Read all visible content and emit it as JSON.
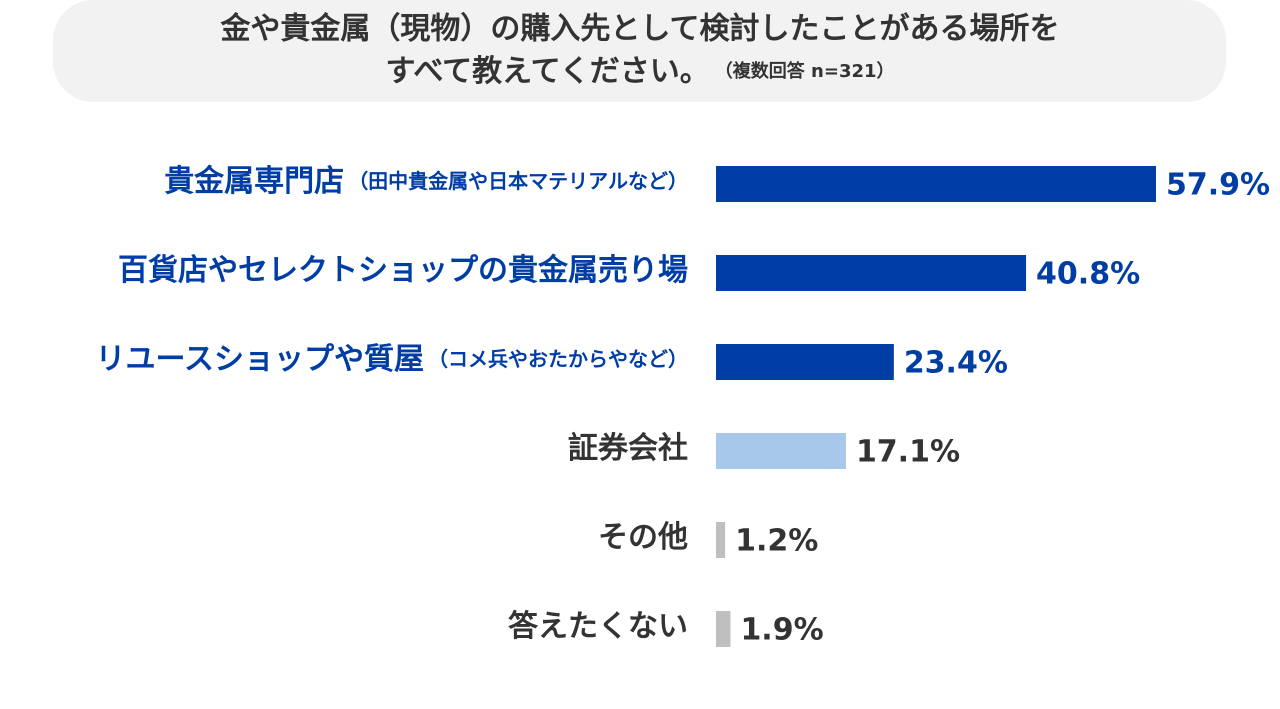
{
  "chart_data": {
    "type": "bar",
    "orientation": "horizontal",
    "title": "金や貴金属（現物）の購入先として検討したことがある場所を",
    "title_line2": "すべて教えてください。",
    "subtitle": "（複数回答 n=321）",
    "categories": [
      "貴金属専門店",
      "百貨店やセレクトショップの貴金属売り場",
      "リユースショップや質屋",
      "証券会社",
      "その他",
      "答えたくない"
    ],
    "category_notes": [
      "（田中貴金属や日本マテリアルなど）",
      null,
      "（コメ兵やおたからやなど）",
      null,
      null,
      null
    ],
    "values": [
      57.9,
      40.8,
      23.4,
      17.1,
      1.2,
      1.9
    ],
    "value_labels": [
      "57.9%",
      "40.8%",
      "23.4%",
      "17.1%",
      "1.2%",
      "1.9%"
    ],
    "colors": [
      "#003da5",
      "#003da5",
      "#003da5",
      "#a7c8ea",
      "#bfbfbf",
      "#bfbfbf"
    ],
    "label_colors": [
      "#003da5",
      "#003da5",
      "#003da5",
      "#333333",
      "#333333",
      "#333333"
    ]
  }
}
